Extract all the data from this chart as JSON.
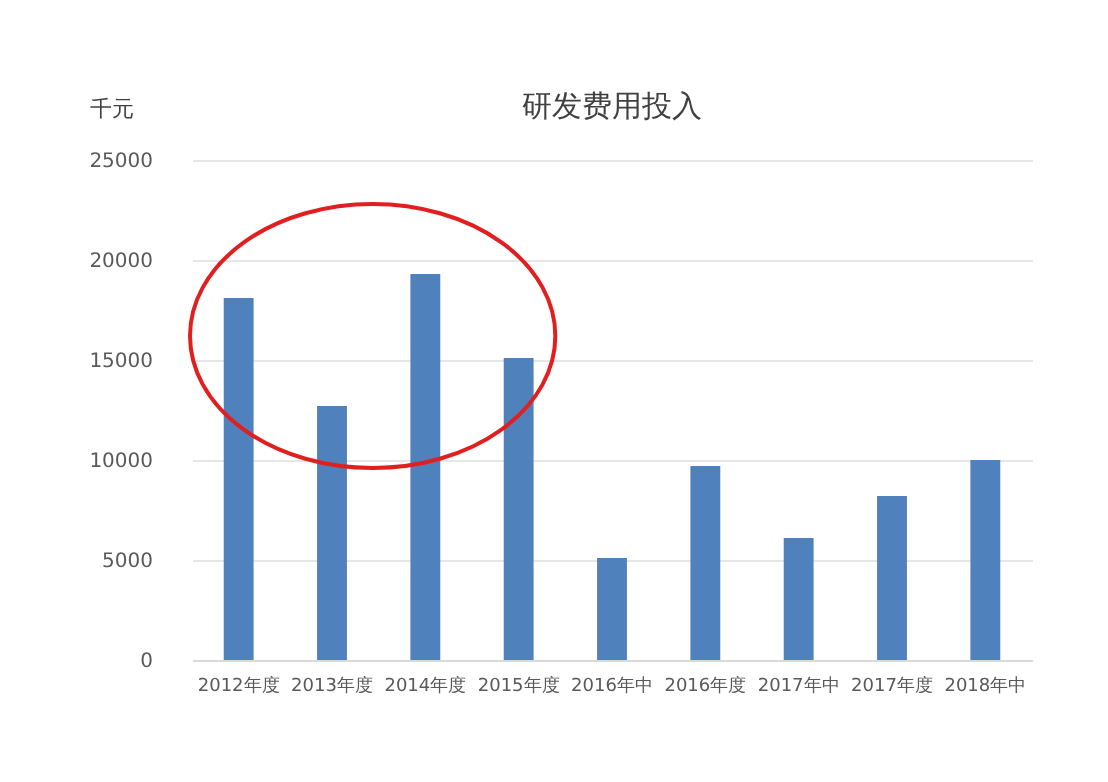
{
  "chart_data": {
    "type": "bar",
    "title": "研发费用投入",
    "ylabel": "千元",
    "categories": [
      "2012年度",
      "2013年度",
      "2014年度",
      "2015年度",
      "2016年中",
      "2016年度",
      "2017年中",
      "2017年度",
      "2018年中"
    ],
    "values": [
      18100,
      12700,
      19300,
      15100,
      5100,
      9700,
      6100,
      8200,
      10000
    ],
    "color": "#4f81bd",
    "ylim": [
      0,
      25000
    ],
    "yticks": [
      0,
      5000,
      10000,
      15000,
      20000,
      25000
    ],
    "grid": "y"
  }
}
